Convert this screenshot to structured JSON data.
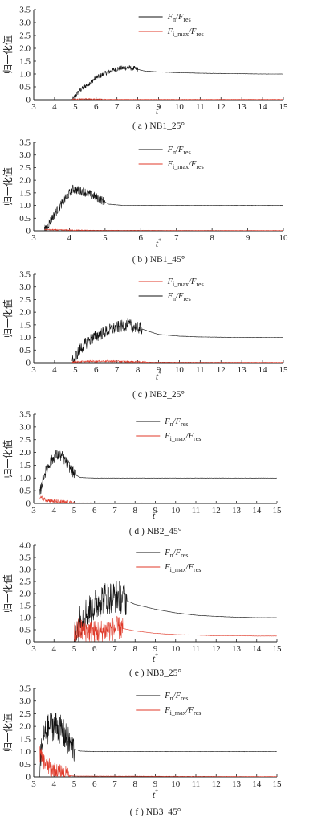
{
  "page": {
    "ylabel": "归一化值",
    "xlabel": "t*"
  },
  "chart_data": [
    {
      "type": "line",
      "caption": "( a ) NB1_25°",
      "xlabel": "t*",
      "ylabel": "归一化值",
      "xlim": [
        3,
        15
      ],
      "ylim": [
        0,
        3.5
      ],
      "xticks": [
        "3",
        "4",
        "5",
        "6",
        "7",
        "8",
        "9",
        "10",
        "11",
        "12",
        "13",
        "14",
        "15"
      ],
      "yticks": [
        "0",
        "0.5",
        "1.0",
        "1.5",
        "2.0",
        "2.5",
        "3.0",
        "3.5"
      ],
      "legend": [
        {
          "name": "Fn/Fres",
          "color": "#111111"
        },
        {
          "name": "Fi_max/Fres",
          "color": "#e03a2a"
        }
      ],
      "series": [
        {
          "name": "Fn/Fres",
          "color": "#111111",
          "x": [
            4.85,
            5.2,
            5.6,
            6.0,
            6.5,
            7.0,
            7.4,
            7.8,
            8.3,
            9,
            10,
            11,
            12,
            13,
            14,
            15
          ],
          "y": [
            0,
            0.35,
            0.6,
            0.85,
            1.05,
            1.2,
            1.25,
            1.22,
            1.12,
            1.08,
            1.05,
            1.03,
            1.02,
            1.01,
            1.0,
            1.0
          ],
          "noise": 0.1,
          "noise_until": 8
        },
        {
          "name": "Fi_max/Fres",
          "color": "#e03a2a",
          "x": [
            4.85,
            5.5,
            6.0,
            6.5,
            15
          ],
          "y": [
            0.02,
            0.03,
            0.02,
            0.01,
            0.01
          ],
          "noise": 0.02,
          "noise_until": 6.5
        }
      ]
    },
    {
      "type": "line",
      "caption": "( b ) NB1_45°",
      "xlabel": "t*",
      "ylabel": "归一化值",
      "xlim": [
        3,
        10
      ],
      "ylim": [
        0,
        3.5
      ],
      "xticks": [
        "3",
        "4",
        "5",
        "6",
        "7",
        "8",
        "9",
        "10"
      ],
      "yticks": [
        "0",
        "0.5",
        "1.0",
        "1.5",
        "2.0",
        "2.5",
        "3.0",
        "3.5"
      ],
      "legend": [
        {
          "name": "Fn/Fres",
          "color": "#111111"
        },
        {
          "name": "Fi_max/Fres",
          "color": "#e03a2a"
        }
      ],
      "series": [
        {
          "name": "Fn/Fres",
          "color": "#111111",
          "x": [
            3.3,
            3.6,
            3.9,
            4.1,
            4.4,
            4.8,
            5.1,
            5.5,
            6,
            7,
            8,
            9,
            10
          ],
          "y": [
            0,
            0.7,
            1.3,
            1.65,
            1.55,
            1.3,
            1.05,
            1.0,
            1.0,
            1.0,
            1.0,
            1.0,
            1.0
          ],
          "noise": 0.18,
          "noise_until": 5.0
        },
        {
          "name": "Fi_max/Fres",
          "color": "#e03a2a",
          "x": [
            3.3,
            3.8,
            4.3,
            10
          ],
          "y": [
            0.05,
            0.03,
            0.02,
            0.01
          ],
          "noise": 0.02,
          "noise_until": 4.5
        }
      ]
    },
    {
      "type": "line",
      "caption": "( c ) NB2_25°",
      "xlabel": "t*",
      "ylabel": "归一化值",
      "xlim": [
        3,
        15
      ],
      "ylim": [
        0,
        3.5
      ],
      "xticks": [
        "3",
        "4",
        "5",
        "6",
        "7",
        "8",
        "9",
        "10",
        "11",
        "12",
        "13",
        "14",
        "15"
      ],
      "yticks": [
        "0",
        "0.5",
        "1.0",
        "1.5",
        "2.0",
        "2.5",
        "3.0",
        "3.5"
      ],
      "legend": [
        {
          "name": "Fi_max/Fres",
          "color": "#e03a2a"
        },
        {
          "name": "Fn/Fres",
          "color": "#111111"
        }
      ],
      "series": [
        {
          "name": "Fn/Fres",
          "color": "#111111",
          "x": [
            4.85,
            5.2,
            5.6,
            6.0,
            6.5,
            7.0,
            7.5,
            8.0,
            8.5,
            9,
            10,
            11,
            12,
            13,
            14,
            15
          ],
          "y": [
            0,
            0.5,
            0.85,
            1.05,
            1.25,
            1.4,
            1.5,
            1.4,
            1.25,
            1.12,
            1.05,
            1.02,
            1.01,
            1.0,
            1.0,
            1.0
          ],
          "noise": 0.25,
          "noise_until": 8.2
        },
        {
          "name": "Fi_max/Fres",
          "color": "#e03a2a",
          "x": [
            4.85,
            5.5,
            6.5,
            7.5,
            8.5,
            15
          ],
          "y": [
            0.03,
            0.05,
            0.06,
            0.04,
            0.02,
            0.01
          ],
          "noise": 0.03,
          "noise_until": 8.5
        }
      ]
    },
    {
      "type": "line",
      "caption": "( d ) NB2_45°",
      "xlabel": "t*",
      "ylabel": "归一化值",
      "xlim": [
        3,
        15
      ],
      "ylim": [
        0,
        3.5
      ],
      "xticks": [
        "3",
        "4",
        "5",
        "6",
        "7",
        "8",
        "9",
        "10",
        "11",
        "12",
        "13",
        "14",
        "15"
      ],
      "yticks": [
        "0",
        "0.5",
        "1.0",
        "1.5",
        "2.0",
        "2.5",
        "3.0",
        "3.5"
      ],
      "legend": [
        {
          "name": "Fn/Fres",
          "color": "#111111"
        },
        {
          "name": "Fi_max/Fres",
          "color": "#e03a2a"
        }
      ],
      "series": [
        {
          "name": "Fn/Fres",
          "color": "#111111",
          "x": [
            3.3,
            3.5,
            3.8,
            4.1,
            4.4,
            4.7,
            5.0,
            5.3,
            6,
            8,
            10,
            12,
            15
          ],
          "y": [
            0.4,
            1.1,
            1.6,
            1.9,
            1.85,
            1.5,
            1.15,
            1.02,
            1.0,
            1.0,
            1.0,
            1.0,
            1.0
          ],
          "noise": 0.22,
          "noise_until": 5.1
        },
        {
          "name": "Fi_max/Fres",
          "color": "#e03a2a",
          "x": [
            3.3,
            3.6,
            4.0,
            4.5,
            5.0,
            15
          ],
          "y": [
            0.25,
            0.15,
            0.08,
            0.05,
            0.02,
            0.01
          ],
          "noise": 0.08,
          "noise_until": 5.0
        }
      ]
    },
    {
      "type": "line",
      "caption": "( e ) NB3_25°",
      "xlabel": "t*",
      "ylabel": "归一化值",
      "xlim": [
        3,
        15
      ],
      "ylim": [
        0,
        4.0
      ],
      "xticks": [
        "3",
        "4",
        "5",
        "6",
        "7",
        "8",
        "9",
        "10",
        "11",
        "12",
        "13",
        "14",
        "15"
      ],
      "yticks": [
        "0",
        "0.5",
        "1.0",
        "1.5",
        "2.0",
        "2.5",
        "3.0",
        "3.5",
        "4.0"
      ],
      "legend": [
        {
          "name": "Fn/Fres",
          "color": "#111111"
        },
        {
          "name": "Fi_max/Fres",
          "color": "#e03a2a"
        }
      ],
      "series": [
        {
          "name": "Fn/Fres",
          "color": "#111111",
          "x": [
            5.0,
            5.3,
            5.7,
            6.0,
            6.4,
            6.8,
            7.2,
            7.6,
            8,
            9,
            10,
            11,
            12,
            13,
            14,
            15
          ],
          "y": [
            0.2,
            0.9,
            1.3,
            1.5,
            1.8,
            1.85,
            1.9,
            1.7,
            1.55,
            1.35,
            1.2,
            1.1,
            1.05,
            1.02,
            1.0,
            1.0
          ],
          "noise": 0.7,
          "noise_until": 7.6
        },
        {
          "name": "Fi_max/Fres",
          "color": "#e03a2a",
          "x": [
            5.0,
            5.2,
            5.6,
            6.0,
            6.5,
            7.0,
            7.4,
            8,
            9,
            10,
            11,
            12,
            13,
            14,
            15
          ],
          "y": [
            0.3,
            0.5,
            0.45,
            0.4,
            0.45,
            0.55,
            0.55,
            0.45,
            0.35,
            0.3,
            0.28,
            0.25,
            0.25,
            0.24,
            0.24
          ],
          "noise": 0.5,
          "noise_until": 7.4
        }
      ]
    },
    {
      "type": "line",
      "caption": "( f ) NB3_45°",
      "xlabel": "t*",
      "ylabel": "归一化值",
      "xlim": [
        3,
        15
      ],
      "ylim": [
        0,
        3.5
      ],
      "xticks": [
        "3",
        "4",
        "5",
        "6",
        "7",
        "8",
        "9",
        "10",
        "11",
        "12",
        "13",
        "14",
        "15"
      ],
      "yticks": [
        "0",
        "0.5",
        "1.0",
        "1.5",
        "2.0",
        "2.5",
        "3.0",
        "3.5"
      ],
      "legend": [
        {
          "name": "Fn/Fres",
          "color": "#111111"
        },
        {
          "name": "Fi_max/Fres",
          "color": "#e03a2a"
        }
      ],
      "series": [
        {
          "name": "Fn/Fres",
          "color": "#111111",
          "x": [
            3.3,
            3.5,
            3.8,
            4.1,
            4.4,
            4.7,
            5.0,
            5.3,
            6,
            8,
            10,
            12,
            15
          ],
          "y": [
            0.5,
            1.6,
            2.0,
            2.05,
            1.8,
            1.4,
            1.1,
            1.02,
            1.0,
            1.0,
            1.0,
            1.0,
            1.0
          ],
          "noise": 0.6,
          "noise_until": 5.0
        },
        {
          "name": "Fi_max/Fres",
          "color": "#e03a2a",
          "x": [
            3.3,
            3.5,
            3.8,
            4.1,
            4.5,
            5.0,
            15
          ],
          "y": [
            0.9,
            0.6,
            0.35,
            0.2,
            0.1,
            0.03,
            0.01
          ],
          "noise": 0.35,
          "noise_until": 4.8
        }
      ]
    }
  ]
}
